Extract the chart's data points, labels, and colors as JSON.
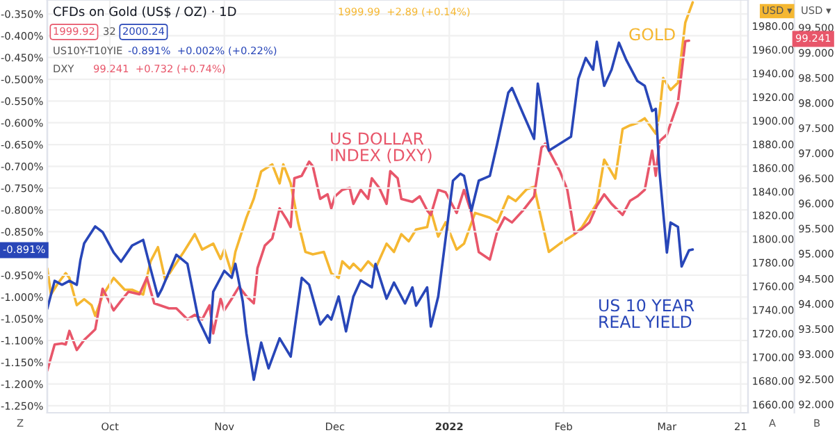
{
  "chart_data": {
    "type": "line",
    "title": "CFDs on Gold (US$ / OZ) · 1D",
    "annotations": [
      "1999.92",
      "32",
      "2000.24",
      "US10Y-T10YIE",
      "-0.891%  +0.002% (+0.22%)",
      "DXY",
      "99.241  +0.732 (+0.74%)",
      "1999.99  +2.89 (+0.14%)",
      "USD ▾",
      "USD ▾",
      "Z",
      "A",
      "B",
      "-0.891%",
      "99.241"
    ],
    "xlim": [
      "2021-09-14",
      "2022-03-23"
    ],
    "xticks": [
      {
        "value": "2021-10-01",
        "label": "Oct"
      },
      {
        "value": "2021-11-01",
        "label": "Nov"
      },
      {
        "value": "2021-12-01",
        "label": "Dec"
      },
      {
        "value": "2022-01-01",
        "label": "2022"
      },
      {
        "value": "2022-02-01",
        "label": "Feb"
      },
      {
        "value": "2022-03-01",
        "label": "Mar"
      },
      {
        "value": "2022-03-21",
        "label": "21"
      }
    ],
    "ylim": [
      -1.266,
      -0.318
    ],
    "yticks": [
      {
        "value": -0.35,
        "label": "-0.350%"
      },
      {
        "value": -0.4,
        "label": "-0.400%"
      },
      {
        "value": -0.45,
        "label": "-0.450%"
      },
      {
        "value": -0.5,
        "label": "-0.500%"
      },
      {
        "value": -0.55,
        "label": "-0.550%"
      },
      {
        "value": -0.6,
        "label": "-0.600%"
      },
      {
        "value": -0.65,
        "label": "-0.650%"
      },
      {
        "value": -0.7,
        "label": "-0.700%"
      },
      {
        "value": -0.75,
        "label": "-0.750%"
      },
      {
        "value": -0.8,
        "label": "-0.800%"
      },
      {
        "value": -0.85,
        "label": "-0.850%"
      },
      {
        "value": -0.95,
        "label": "-0.950%"
      },
      {
        "value": -1.0,
        "label": "-1.000%"
      },
      {
        "value": -1.05,
        "label": "-1.050%"
      },
      {
        "value": -1.1,
        "label": "-1.100%"
      },
      {
        "value": -1.15,
        "label": "-1.150%"
      },
      {
        "value": -1.2,
        "label": "-1.200%"
      },
      {
        "value": -1.25,
        "label": "-1.250%"
      }
    ],
    "y2lim": [
      1653,
      2002
    ],
    "y2ticks": [
      {
        "value": 1660,
        "label": "1660.00"
      },
      {
        "value": 1680,
        "label": "1680.00"
      },
      {
        "value": 1700,
        "label": "1700.00"
      },
      {
        "value": 1720,
        "label": "1720.00"
      },
      {
        "value": 1740,
        "label": "1740.00"
      },
      {
        "value": 1760,
        "label": "1760.00"
      },
      {
        "value": 1780,
        "label": "1780.00"
      },
      {
        "value": 1800,
        "label": "1800.00"
      },
      {
        "value": 1820,
        "label": "1820.00"
      },
      {
        "value": 1840,
        "label": "1840.00"
      },
      {
        "value": 1860,
        "label": "1860.00"
      },
      {
        "value": 1880,
        "label": "1880.00"
      },
      {
        "value": 1900,
        "label": "1900.00"
      },
      {
        "value": 1920,
        "label": "1920.00"
      },
      {
        "value": 1940,
        "label": "1940.00"
      },
      {
        "value": 1960,
        "label": "1960.00"
      },
      {
        "value": 1980,
        "label": "1980.00"
      }
    ],
    "y3lim": [
      91.83,
      100.05
    ],
    "y3ticks": [
      {
        "value": 92,
        "label": "92.000"
      },
      {
        "value": 92.5,
        "label": "92.500"
      },
      {
        "value": 93,
        "label": "93.000"
      },
      {
        "value": 93.5,
        "label": "93.500"
      },
      {
        "value": 94,
        "label": "94.000"
      },
      {
        "value": 94.5,
        "label": "94.500"
      },
      {
        "value": 95,
        "label": "95.000"
      },
      {
        "value": 95.5,
        "label": "95.500"
      },
      {
        "value": 96,
        "label": "96.000"
      },
      {
        "value": 96.5,
        "label": "96.500"
      },
      {
        "value": 97,
        "label": "97.000"
      },
      {
        "value": 97.5,
        "label": "97.500"
      },
      {
        "value": 98,
        "label": "98.000"
      },
      {
        "value": 98.5,
        "label": "98.500"
      },
      {
        "value": 99,
        "label": "99.000"
      },
      {
        "value": 99.5,
        "label": "99.500"
      }
    ],
    "grid": true,
    "legend": false,
    "line_style": "solid",
    "series": [
      {
        "name": "US 10 YEAR\nREAL YIELD",
        "color": "#2846b8",
        "axis": "y",
        "x": [
          "2021-09-14",
          "2021-09-16",
          "2021-09-18",
          "2021-09-20",
          "2021-09-22",
          "2021-09-23",
          "2021-09-24",
          "2021-09-27",
          "2021-09-29",
          "2021-10-02",
          "2021-10-04",
          "2021-10-07",
          "2021-10-10",
          "2021-10-12",
          "2021-10-14",
          "2021-10-15",
          "2021-10-19",
          "2021-10-22",
          "2021-10-25",
          "2021-10-28",
          "2021-10-29",
          "2021-11-01",
          "2021-11-03",
          "2021-11-04",
          "2021-11-06",
          "2021-11-07",
          "2021-11-09",
          "2021-11-11",
          "2021-11-13",
          "2021-11-16",
          "2021-11-19",
          "2021-11-22",
          "2021-11-24",
          "2021-11-27",
          "2021-11-29",
          "2021-11-30",
          "2021-12-02",
          "2021-12-04",
          "2021-12-06",
          "2021-12-08",
          "2021-12-11",
          "2021-12-12",
          "2021-12-15",
          "2021-12-17",
          "2021-12-20",
          "2021-12-22",
          "2021-12-23",
          "2021-12-26",
          "2021-12-27",
          "2021-12-29",
          "2022-01-02",
          "2022-01-04",
          "2022-01-05",
          "2022-01-07",
          "2022-01-09",
          "2022-01-12",
          "2022-01-14",
          "2022-01-17",
          "2022-01-18",
          "2022-01-21",
          "2022-01-24",
          "2022-01-25",
          "2022-01-28",
          "2022-02-03",
          "2022-02-05",
          "2022-02-07",
          "2022-02-09",
          "2022-02-10",
          "2022-02-12",
          "2022-02-14",
          "2022-02-16",
          "2022-02-18",
          "2022-02-21",
          "2022-02-23",
          "2022-02-25",
          "2022-02-26",
          "2022-02-27",
          "2022-03-01",
          "2022-03-02",
          "2022-03-04",
          "2022-03-05",
          "2022-03-07",
          "2022-03-08"
        ],
        "values": [
          -1.027,
          -0.963,
          -0.972,
          -0.963,
          -0.972,
          -0.915,
          -0.877,
          -0.838,
          -0.851,
          -0.898,
          -0.919,
          -0.882,
          -0.869,
          -0.935,
          -0.999,
          -0.983,
          -0.903,
          -0.924,
          -1.052,
          -1.105,
          -0.988,
          -0.94,
          -0.956,
          -0.924,
          -1.01,
          -1.084,
          -1.19,
          -1.105,
          -1.164,
          -1.095,
          -1.137,
          -0.956,
          -0.972,
          -1.063,
          -1.042,
          -1.052,
          -0.999,
          -1.079,
          -0.999,
          -0.962,
          -0.978,
          -0.924,
          -1.004,
          -0.967,
          -1.015,
          -0.978,
          -1.02,
          -0.978,
          -1.068,
          -0.999,
          -0.733,
          -0.717,
          -0.722,
          -0.802,
          -0.733,
          -0.722,
          -0.648,
          -0.531,
          -0.52,
          -0.579,
          -0.637,
          -0.51,
          -0.664,
          -0.632,
          -0.499,
          -0.451,
          -0.478,
          -0.414,
          -0.515,
          -0.478,
          -0.416,
          -0.456,
          -0.504,
          -0.515,
          -0.573,
          -0.568,
          -0.712,
          -0.898,
          -0.829,
          -0.839,
          -0.93,
          -0.893,
          -0.891
        ]
      },
      {
        "name": "GOLD",
        "color": "#f5b731",
        "axis": "y2",
        "x": [
          "2021-09-14",
          "2021-09-15",
          "2021-09-17",
          "2021-09-19",
          "2021-09-20",
          "2021-09-22",
          "2021-09-24",
          "2021-09-26",
          "2021-09-27",
          "2021-09-29",
          "2021-10-02",
          "2021-10-05",
          "2021-10-07",
          "2021-10-10",
          "2021-10-12",
          "2021-10-14",
          "2021-10-16",
          "2021-10-18",
          "2021-10-21",
          "2021-10-24",
          "2021-10-26",
          "2021-10-29",
          "2021-10-31",
          "2021-11-01",
          "2021-11-03",
          "2021-11-04",
          "2021-11-07",
          "2021-11-09",
          "2021-11-11",
          "2021-11-14",
          "2021-11-16",
          "2021-11-17",
          "2021-11-19",
          "2021-11-21",
          "2021-11-23",
          "2021-11-25",
          "2021-11-28",
          "2021-11-30",
          "2021-12-02",
          "2021-12-03",
          "2021-12-05",
          "2021-12-06",
          "2021-12-08",
          "2021-12-10",
          "2021-12-12",
          "2021-12-15",
          "2021-12-17",
          "2021-12-19",
          "2021-12-21",
          "2021-12-23",
          "2021-12-26",
          "2021-12-27",
          "2021-12-29",
          "2021-12-31",
          "2022-01-03",
          "2022-01-05",
          "2022-01-08",
          "2022-01-12",
          "2022-01-14",
          "2022-01-17",
          "2022-01-19",
          "2022-01-22",
          "2022-01-24",
          "2022-01-25",
          "2022-01-28",
          "2022-01-31",
          "2022-02-04",
          "2022-02-06",
          "2022-02-08",
          "2022-02-10",
          "2022-02-12",
          "2022-02-15",
          "2022-02-17",
          "2022-02-19",
          "2022-02-21",
          "2022-02-23",
          "2022-02-26",
          "2022-02-27",
          "2022-02-28",
          "2022-03-02",
          "2022-03-04",
          "2022-03-06",
          "2022-03-08"
        ],
        "values": [
          1775,
          1753,
          1763,
          1771,
          1767,
          1744,
          1749,
          1744,
          1735,
          1752,
          1767,
          1757,
          1757,
          1753,
          1781,
          1793,
          1765,
          1775,
          1789,
          1804,
          1791,
          1796,
          1783,
          1791,
          1771,
          1789,
          1818,
          1834,
          1857,
          1863,
          1847,
          1863,
          1847,
          1814,
          1789,
          1787,
          1789,
          1771,
          1767,
          1781,
          1775,
          1779,
          1773,
          1781,
          1775,
          1796,
          1789,
          1804,
          1798,
          1808,
          1810,
          1824,
          1802,
          1814,
          1791,
          1796,
          1822,
          1818,
          1814,
          1836,
          1832,
          1842,
          1844,
          1830,
          1789,
          1796,
          1804,
          1810,
          1820,
          1830,
          1867,
          1851,
          1893,
          1896,
          1898,
          1902,
          1889,
          1906,
          1936,
          1926,
          1932,
          1983,
          2000
        ]
      },
      {
        "name": "US DOLLAR\nINDEX (DXY)",
        "color": "#e8566a",
        "axis": "y3",
        "x": [
          "2021-09-14",
          "2021-09-16",
          "2021-09-18",
          "2021-09-19",
          "2021-09-20",
          "2021-09-22",
          "2021-09-24",
          "2021-09-27",
          "2021-09-29",
          "2021-10-02",
          "2021-10-04",
          "2021-10-06",
          "2021-10-09",
          "2021-10-11",
          "2021-10-13",
          "2021-10-17",
          "2021-10-19",
          "2021-10-22",
          "2021-10-24",
          "2021-10-26",
          "2021-10-28",
          "2021-10-29",
          "2021-10-31",
          "2021-11-01",
          "2021-11-03",
          "2021-11-05",
          "2021-11-07",
          "2021-11-09",
          "2021-11-10",
          "2021-11-12",
          "2021-11-14",
          "2021-11-16",
          "2021-11-18",
          "2021-11-19",
          "2021-11-20",
          "2021-11-22",
          "2021-11-24",
          "2021-11-25",
          "2021-11-27",
          "2021-11-29",
          "2021-11-30",
          "2021-12-01",
          "2021-12-03",
          "2021-12-05",
          "2021-12-06",
          "2021-12-08",
          "2021-12-10",
          "2021-12-11",
          "2021-12-13",
          "2021-12-15",
          "2021-12-16",
          "2021-12-18",
          "2021-12-19",
          "2021-12-22",
          "2021-12-24",
          "2021-12-26",
          "2021-12-27",
          "2021-12-29",
          "2021-12-31",
          "2022-01-03",
          "2022-01-05",
          "2022-01-07",
          "2022-01-09",
          "2022-01-12",
          "2022-01-14",
          "2022-01-16",
          "2022-01-18",
          "2022-01-21",
          "2022-01-24",
          "2022-01-26",
          "2022-01-27",
          "2022-01-31",
          "2022-02-02",
          "2022-02-04",
          "2022-02-06",
          "2022-02-08",
          "2022-02-10",
          "2022-02-12",
          "2022-02-14",
          "2022-02-17",
          "2022-02-19",
          "2022-02-21",
          "2022-02-23",
          "2022-02-25",
          "2022-02-26",
          "2022-02-27",
          "2022-03-01",
          "2022-03-04",
          "2022-03-06",
          "2022-03-07"
        ],
        "values": [
          92.67,
          93.19,
          93.21,
          93.19,
          93.46,
          93.08,
          93.28,
          93.49,
          94.3,
          93.87,
          94.06,
          94.24,
          94.19,
          94.52,
          94.01,
          93.91,
          93.91,
          93.69,
          93.78,
          93.69,
          93.97,
          93.41,
          94.1,
          93.87,
          94.1,
          94.34,
          94.15,
          94.01,
          94.71,
          95.16,
          95.3,
          95.9,
          95.67,
          95.53,
          96.5,
          96.55,
          96.83,
          96.74,
          96.09,
          96.18,
          95.9,
          96.14,
          96.27,
          96.31,
          95.99,
          96.27,
          96.09,
          96.5,
          96.31,
          95.99,
          96.64,
          96.5,
          96.09,
          96.03,
          96.14,
          95.86,
          95.77,
          96.27,
          96.22,
          95.81,
          96.27,
          95.81,
          95.03,
          94.88,
          95.44,
          95.72,
          95.62,
          95.86,
          96.14,
          97.11,
          97.19,
          96.64,
          96.27,
          95.4,
          95.49,
          95.62,
          95.95,
          96.18,
          95.99,
          95.77,
          96.05,
          96.14,
          96.27,
          97.05,
          96.55,
          97.24,
          97.37,
          98.01,
          99.23,
          99.24
        ]
      }
    ]
  }
}
